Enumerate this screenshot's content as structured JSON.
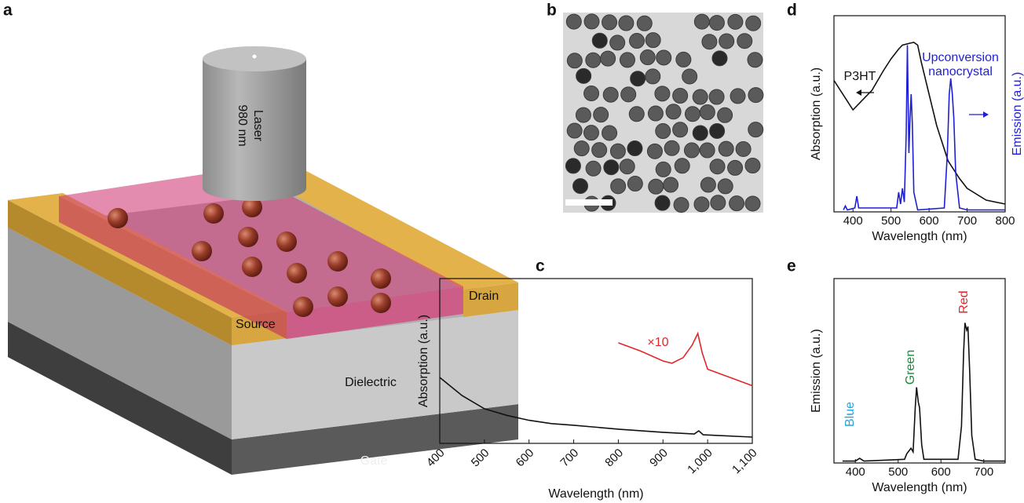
{
  "diagram": {
    "panel": "a",
    "laser": [
      "980 nm",
      "Laser"
    ],
    "source": "Source",
    "drain": "Drain",
    "dielectric": "Dielectric",
    "gate": "Gate"
  },
  "micrograph": {
    "panel": "b"
  },
  "chart_data": [
    {
      "type": "line",
      "panel": "c",
      "x_label": "Wavelength (nm)",
      "y_label": "Absorption (a.u.)",
      "xlim": [
        400,
        1100
      ],
      "xticks": [
        400,
        500,
        600,
        700,
        800,
        900,
        {
          "value": 1000,
          "label": "1,000"
        },
        {
          "value": 1100,
          "label": "1,100"
        }
      ],
      "ylim": [
        0,
        1
      ],
      "series": [
        {
          "color": "#111111",
          "x": [
            400,
            450,
            500,
            550,
            600,
            650,
            700,
            800,
            900,
            970,
            980,
            990,
            1100
          ],
          "values": [
            0.4,
            0.29,
            0.21,
            0.17,
            0.14,
            0.12,
            0.11,
            0.086,
            0.067,
            0.057,
            0.076,
            0.052,
            0.038
          ]
        },
        {
          "color": "#e3262a",
          "x": [
            800,
            850,
            900,
            920,
            945,
            965,
            978,
            988,
            1000,
            1050,
            1100
          ],
          "values": [
            0.61,
            0.56,
            0.5,
            0.486,
            0.52,
            0.595,
            0.667,
            0.548,
            0.45,
            0.4,
            0.35
          ]
        }
      ],
      "annotations": [
        {
          "text": "×10",
          "color": "#e3262a"
        }
      ]
    },
    {
      "type": "line",
      "panel": "d",
      "x_label": "Wavelength (nm)",
      "y_label": "Absorption (a.u.)",
      "y2_label": "Emission (a.u.)",
      "xlim": [
        350,
        800
      ],
      "xticks": [
        400,
        500,
        600,
        700,
        800
      ],
      "ylim": [
        0,
        1
      ],
      "y2lim": [
        0,
        1
      ],
      "series": [
        {
          "color": "#111111",
          "x": [
            350,
            400,
            450,
            480,
            500,
            520,
            530,
            550,
            560,
            570,
            580,
            600,
            620,
            650,
            680,
            700,
            750,
            800
          ],
          "values": [
            0.67,
            0.52,
            0.62,
            0.72,
            0.78,
            0.83,
            0.85,
            0.86,
            0.864,
            0.85,
            0.76,
            0.6,
            0.44,
            0.26,
            0.17,
            0.12,
            0.06,
            0.04
          ]
        },
        {
          "color": "#1f1fd6",
          "axis": "y2",
          "x": [
            375,
            380,
            385,
            405,
            410,
            415,
            515,
            520,
            525,
            530,
            535,
            540,
            543,
            547,
            550,
            553,
            556,
            560,
            570,
            640,
            648,
            653,
            657,
            661,
            665,
            670,
            680,
            700,
            800
          ],
          "values": [
            0.01,
            0.03,
            0.01,
            0.02,
            0.08,
            0.02,
            0.02,
            0.1,
            0.04,
            0.12,
            0.05,
            0.4,
            0.85,
            0.3,
            0.48,
            0.6,
            0.45,
            0.1,
            0.01,
            0.02,
            0.3,
            0.6,
            0.68,
            0.6,
            0.48,
            0.2,
            0.02,
            0.01,
            0.01
          ]
        }
      ],
      "annotations": [
        {
          "text": "P3HT",
          "color": "#111111"
        },
        {
          "text": "Upconversion",
          "color": "#1f1fd6"
        },
        {
          "text": "nanocrystal",
          "color": "#1f1fd6"
        }
      ]
    },
    {
      "type": "line",
      "panel": "e",
      "x_label": "Wavelength (nm)",
      "y_label": "Emission (a.u.)",
      "xlim": [
        350,
        750
      ],
      "xticks": [
        400,
        500,
        600,
        700
      ],
      "ylim": [
        0,
        1
      ],
      "series": [
        {
          "color": "#111111",
          "x": [
            370,
            400,
            410,
            420,
            515,
            520,
            530,
            535,
            540,
            543,
            547,
            550,
            555,
            560,
            640,
            648,
            653,
            656,
            660,
            663,
            667,
            672,
            680,
            700,
            750
          ],
          "values": [
            0.01,
            0.01,
            0.025,
            0.01,
            0.02,
            0.05,
            0.08,
            0.06,
            0.3,
            0.41,
            0.33,
            0.3,
            0.1,
            0.02,
            0.02,
            0.2,
            0.6,
            0.76,
            0.72,
            0.74,
            0.5,
            0.15,
            0.02,
            0.01,
            0.01
          ]
        }
      ],
      "annotations": [
        {
          "text": "Blue",
          "color": "#29a3dc"
        },
        {
          "text": "Green",
          "color": "#1a8a3a"
        },
        {
          "text": "Red",
          "color": "#e3262a"
        }
      ]
    }
  ]
}
